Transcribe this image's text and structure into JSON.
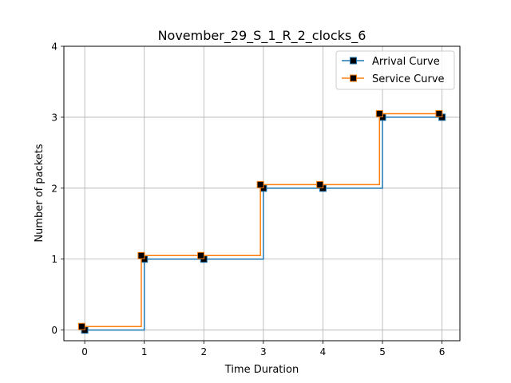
{
  "chart_data": {
    "type": "line",
    "step_style": "post",
    "title": "November_29_S_1_R_2_clocks_6",
    "xlabel": "Time Duration",
    "ylabel": "Number of packets",
    "xlim": [
      -0.35,
      6.3
    ],
    "ylim": [
      -0.15,
      4
    ],
    "xticks": [
      0,
      1,
      2,
      3,
      4,
      5,
      6
    ],
    "xtick_labels": [
      "0",
      "1",
      "2",
      "3",
      "4",
      "5",
      "6"
    ],
    "yticks": [
      0,
      1,
      2,
      3,
      4
    ],
    "ytick_labels": [
      "0",
      "1",
      "2",
      "3",
      "4"
    ],
    "grid": true,
    "legend_position": "top-right",
    "marker": "square",
    "series": [
      {
        "name": "Arrival Curve",
        "color": "#1f77b4",
        "marker_color": "#000000",
        "x": [
          0,
          1,
          2,
          3,
          4,
          5,
          6
        ],
        "y": [
          0,
          1,
          1,
          2,
          2,
          3,
          3
        ]
      },
      {
        "name": "Service Curve",
        "color": "#ff7f0e",
        "marker_color": "#000000",
        "x": [
          -0.05,
          0.95,
          1.95,
          2.95,
          3.95,
          4.95,
          5.95
        ],
        "y": [
          0.05,
          1.05,
          1.05,
          2.05,
          2.05,
          3.05,
          3.05
        ]
      }
    ]
  }
}
